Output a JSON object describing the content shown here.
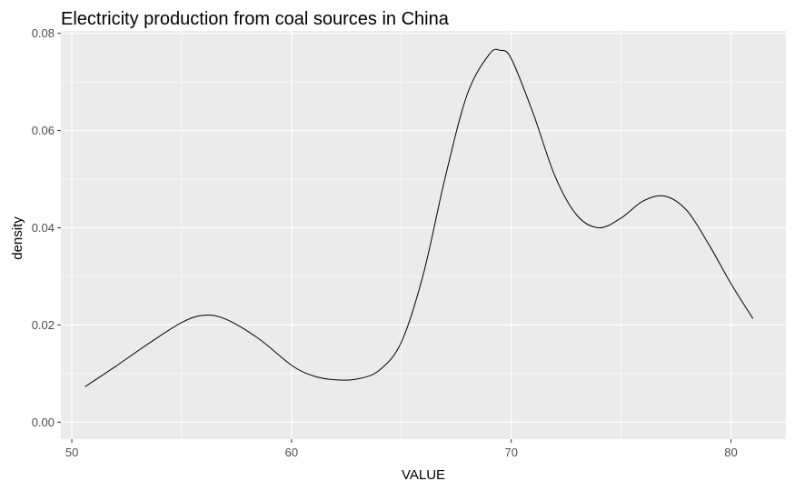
{
  "chart_data": {
    "type": "line",
    "title": "Electricity production from coal sources in China",
    "xlabel": "VALUE",
    "ylabel": "density",
    "xlim": [
      49.5,
      82.5
    ],
    "ylim": [
      -0.0035,
      0.0805
    ],
    "x_ticks": [
      50,
      60,
      70,
      80
    ],
    "x_tick_labels": [
      "50",
      "60",
      "70",
      "80"
    ],
    "y_ticks": [
      0.0,
      0.02,
      0.04,
      0.06,
      0.08
    ],
    "y_tick_labels": [
      "0.00",
      "0.02",
      "0.04",
      "0.06",
      "0.08"
    ],
    "grid": true,
    "background": "#ebebeb",
    "grid_color": "#ffffff",
    "line_color": "#000000",
    "series": [
      {
        "x": [
          50.6,
          52.0,
          53.5,
          55.0,
          56.0,
          57.0,
          58.5,
          60.0,
          61.0,
          62.0,
          63.0,
          64.0,
          65.0,
          66.0,
          67.0,
          68.0,
          69.0,
          69.5,
          70.0,
          71.0,
          72.0,
          73.0,
          74.0,
          75.0,
          76.0,
          77.0,
          78.0,
          79.0,
          80.0,
          81.0
        ],
        "y": [
          0.0073,
          0.0115,
          0.0162,
          0.0205,
          0.022,
          0.0212,
          0.0172,
          0.0117,
          0.0095,
          0.0087,
          0.0089,
          0.0107,
          0.0165,
          0.0305,
          0.0505,
          0.0675,
          0.0757,
          0.0765,
          0.0748,
          0.0635,
          0.0505,
          0.0425,
          0.04,
          0.042,
          0.0455,
          0.0465,
          0.0435,
          0.0365,
          0.0285,
          0.0213
        ]
      }
    ]
  }
}
